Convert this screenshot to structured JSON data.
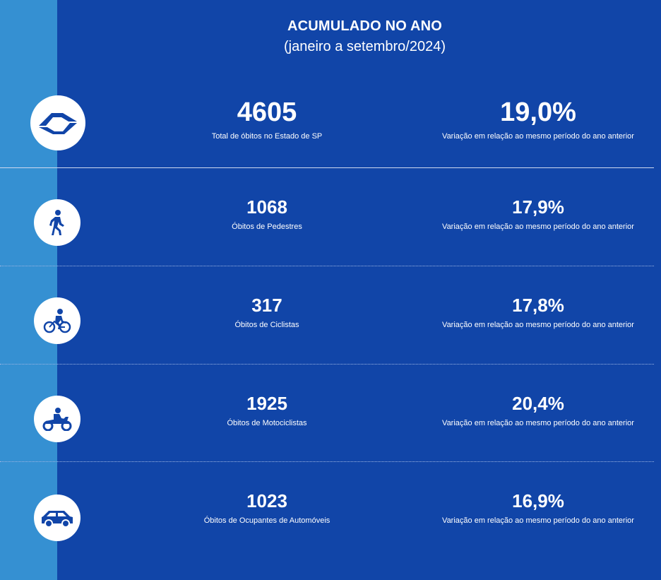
{
  "header": {
    "title": "ACUMULADO NO ANO",
    "subtitle": "(janeiro a setembro/2024)"
  },
  "colors": {
    "background": "#1145a8",
    "side_strip": "#3590d2",
    "icon": "#1145a8",
    "text": "#ffffff"
  },
  "rows": [
    {
      "icon": "sao-paulo-map-icon",
      "value": "4605",
      "label": "Total de óbitos no Estado de SP",
      "variation": "19,0%",
      "variation_label": "Variação em relação ao mesmo período do ano anterior"
    },
    {
      "icon": "pedestrian-icon",
      "value": "1068",
      "label": "Óbitos de Pedestres",
      "variation": "17,9%",
      "variation_label": "Variação em relação ao mesmo período do ano anterior"
    },
    {
      "icon": "cyclist-icon",
      "value": "317",
      "label": "Óbitos de Ciclistas",
      "variation": "17,8%",
      "variation_label": "Variação em relação ao mesmo período do ano anterior"
    },
    {
      "icon": "motorcyclist-icon",
      "value": "1925",
      "label": "Óbitos de Motociclistas",
      "variation": "20,4%",
      "variation_label": "Variação em relação ao mesmo período do ano anterior"
    },
    {
      "icon": "car-icon",
      "value": "1023",
      "label": "Óbitos de Ocupantes de Automóveis",
      "variation": "16,9%",
      "variation_label": "Variação em relação ao mesmo período do ano anterior"
    }
  ]
}
